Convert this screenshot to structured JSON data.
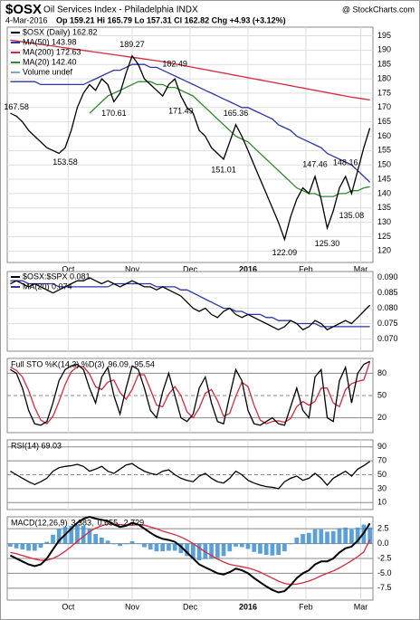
{
  "header": {
    "symbol": "$OSX",
    "name": "Oil Services Index - Philadelphia INDX",
    "date": "4-Mar-2016",
    "quote": "Op 159.21 Hi 165.79 Lo 157.31 Cl 162.82 Chg +4.93 (+3.12%)",
    "credit": "@ StockCharts.com"
  },
  "chart_data": [
    {
      "type": "line",
      "legend_layout": "rows",
      "legend": [
        {
          "text": "$OSX (Daily) 162.82",
          "color": "#000000"
        },
        {
          "text": "MA(50) 143.98",
          "color": "#2b35a8"
        },
        {
          "text": "MA(200) 172.63",
          "color": "#d42a3c"
        },
        {
          "text": "MA(20) 142.40",
          "color": "#2e8b2e"
        },
        {
          "text": "Volume undef",
          "color": "#7fa7d8"
        }
      ],
      "ylim": [
        116,
        198
      ],
      "yticks": [
        120,
        125,
        130,
        135,
        140,
        145,
        150,
        155,
        160,
        165,
        170,
        175,
        180,
        185,
        190,
        195
      ],
      "xticks": [
        {
          "value": 9.5,
          "label": "Oct"
        },
        {
          "value": 20,
          "label": "Nov"
        },
        {
          "value": 29.5,
          "label": "Dec"
        },
        {
          "value": 39,
          "label": "2016"
        },
        {
          "value": 48.5,
          "label": "Feb"
        },
        {
          "value": 57.5,
          "label": "Mar"
        }
      ],
      "series": [
        {
          "color": "#d42a3c",
          "kind": "line",
          "values": [
            193.5,
            193.2,
            192.9,
            192.6,
            192.3,
            192.0,
            191.7,
            191.4,
            191.1,
            190.8,
            190.5,
            190.2,
            189.9,
            189.6,
            189.3,
            189.0,
            188.7,
            188.4,
            188.1,
            187.8,
            187.5,
            187.2,
            186.9,
            186.6,
            186.3,
            186.0,
            185.6,
            185.2,
            184.8,
            184.4,
            184.0,
            183.6,
            183.2,
            182.8,
            182.4,
            182.0,
            181.6,
            181.2,
            180.8,
            180.4,
            180.0,
            179.6,
            179.2,
            178.8,
            178.4,
            178.0,
            177.6,
            177.2,
            176.8,
            176.4,
            176.0,
            175.6,
            175.2,
            174.8,
            174.4,
            174.0,
            173.6,
            173.3,
            173.0,
            172.63
          ]
        },
        {
          "color": "#2b35a8",
          "kind": "line",
          "values": [
            179,
            179,
            179,
            179,
            179,
            178,
            178,
            178,
            178,
            178,
            178,
            178,
            178,
            179,
            180,
            181,
            182,
            183,
            183,
            184,
            185,
            185,
            185,
            184,
            184,
            183,
            182,
            181,
            180,
            179,
            178,
            177,
            176,
            175,
            174,
            173,
            172,
            171,
            170,
            170,
            169,
            168,
            167,
            166,
            164,
            163,
            162,
            160,
            159,
            158,
            157,
            156,
            154,
            153,
            152,
            151,
            150,
            148,
            146,
            143.98
          ]
        },
        {
          "color": "#2e8b2e",
          "kind": "line",
          "values": [
            null,
            null,
            null,
            null,
            null,
            null,
            null,
            null,
            null,
            null,
            null,
            null,
            null,
            168,
            170,
            172,
            174,
            175,
            176,
            177,
            178,
            179,
            179,
            179,
            178,
            178,
            177,
            177,
            176,
            175,
            174,
            172,
            170,
            168,
            166,
            164,
            162,
            160,
            159,
            158,
            156,
            154,
            152,
            150,
            148,
            146,
            144,
            142,
            141,
            140,
            140,
            139,
            139,
            139,
            140,
            140,
            141,
            141,
            142,
            142.4
          ]
        },
        {
          "color": "#000000",
          "kind": "line",
          "values": [
            168,
            167,
            165,
            162,
            160,
            158,
            156,
            155,
            154,
            156,
            162,
            170,
            175,
            178,
            176,
            180,
            178,
            172,
            175,
            182,
            188,
            185,
            180,
            178,
            176,
            174,
            178,
            180,
            174,
            170,
            168,
            162,
            160,
            156,
            154,
            152,
            158,
            164,
            160,
            155,
            150,
            145,
            140,
            135,
            130,
            124,
            132,
            138,
            142,
            140,
            146,
            138,
            128,
            134,
            142,
            146,
            140,
            148,
            156,
            162.82
          ]
        }
      ],
      "annotations": [
        {
          "x": 1,
          "value": 167.58
        },
        {
          "x": 9,
          "value": 153.58
        },
        {
          "x": 17,
          "value": 170.61
        },
        {
          "x": 20,
          "value": 189.27
        },
        {
          "x": 27,
          "value": 182.49
        },
        {
          "x": 28,
          "value": 171.49
        },
        {
          "x": 37,
          "value": 165.36
        },
        {
          "x": 35,
          "value": 151.01
        },
        {
          "x": 45,
          "value": 122.09
        },
        {
          "x": 50,
          "value": 147.46
        },
        {
          "x": 52,
          "value": 125.3,
          "label": "125.30"
        },
        {
          "x": 55,
          "value": 148.16
        },
        {
          "x": 56,
          "value": 135.08
        }
      ]
    },
    {
      "type": "line",
      "legend_layout": "rows",
      "legend": [
        {
          "text": "$OSX:$SPX 0.081",
          "color": "#000000"
        },
        {
          "text": "MA(20) 0.074",
          "color": "#2b35a8"
        }
      ],
      "ylim": [
        0.066,
        0.092
      ],
      "yticks": [
        {
          "value": 0.07,
          "label": "0.070"
        },
        {
          "value": 0.075,
          "label": "0.075"
        },
        {
          "value": 0.08,
          "label": "0.080"
        },
        {
          "value": 0.085,
          "label": "0.085"
        },
        {
          "value": 0.09,
          "label": "0.090"
        }
      ],
      "series": [
        {
          "color": "#2b35a8",
          "kind": "line",
          "values": [
            0.089,
            0.089,
            0.089,
            0.088,
            0.088,
            0.088,
            0.088,
            0.088,
            0.087,
            0.087,
            0.087,
            0.087,
            0.087,
            0.087,
            0.087,
            0.087,
            0.087,
            0.088,
            0.088,
            0.088,
            0.088,
            0.088,
            0.088,
            0.088,
            0.087,
            0.087,
            0.087,
            0.087,
            0.086,
            0.086,
            0.085,
            0.084,
            0.083,
            0.082,
            0.081,
            0.08,
            0.08,
            0.079,
            0.079,
            0.078,
            0.078,
            0.078,
            0.077,
            0.077,
            0.076,
            0.076,
            0.076,
            0.075,
            0.075,
            0.075,
            0.075,
            0.074,
            0.074,
            0.074,
            0.074,
            0.074,
            0.074,
            0.074,
            0.074,
            0.074
          ]
        },
        {
          "color": "#000000",
          "kind": "line",
          "values": [
            0.088,
            0.089,
            0.088,
            0.087,
            0.088,
            0.087,
            0.086,
            0.085,
            0.086,
            0.087,
            0.088,
            0.089,
            0.089,
            0.09,
            0.089,
            0.088,
            0.089,
            0.088,
            0.087,
            0.088,
            0.089,
            0.088,
            0.087,
            0.087,
            0.086,
            0.087,
            0.086,
            0.085,
            0.084,
            0.082,
            0.08,
            0.079,
            0.08,
            0.078,
            0.077,
            0.079,
            0.08,
            0.078,
            0.077,
            0.078,
            0.077,
            0.076,
            0.075,
            0.074,
            0.073,
            0.074,
            0.076,
            0.075,
            0.073,
            0.074,
            0.076,
            0.075,
            0.073,
            0.074,
            0.075,
            0.076,
            0.075,
            0.077,
            0.079,
            0.081
          ]
        }
      ]
    },
    {
      "type": "line",
      "legend_layout": "inline",
      "legend": [
        {
          "text": "Full STO %K(14,3) %D(3)",
          "color": "#000000"
        },
        {
          "text": "96.09,",
          "color": "#000000"
        },
        {
          "text": "95.54",
          "color": "#d42a3c"
        }
      ],
      "ylim": [
        0,
        100
      ],
      "yticks": [
        20,
        50,
        80
      ],
      "series": [
        {
          "color": "#d42a3c",
          "kind": "line",
          "values": [
            88,
            84,
            75,
            57,
            34,
            17,
            12,
            22,
            42,
            65,
            82,
            89,
            89,
            79,
            62,
            58,
            68,
            71,
            54,
            45,
            58,
            78,
            78,
            58,
            37,
            35,
            52,
            62,
            50,
            28,
            20,
            33,
            53,
            58,
            43,
            22,
            26,
            49,
            68,
            62,
            37,
            17,
            12,
            15,
            16,
            14,
            19,
            35,
            42,
            37,
            42,
            60,
            60,
            40,
            35,
            58,
            66,
            69,
            71,
            95.54
          ]
        },
        {
          "color": "#000000",
          "kind": "line",
          "values": [
            85,
            80,
            60,
            30,
            12,
            10,
            15,
            40,
            70,
            85,
            90,
            92,
            85,
            60,
            40,
            75,
            88,
            50,
            25,
            60,
            90,
            85,
            60,
            30,
            20,
            55,
            80,
            50,
            20,
            15,
            25,
            60,
            75,
            40,
            15,
            12,
            50,
            85,
            70,
            30,
            12,
            10,
            15,
            20,
            12,
            10,
            35,
            60,
            30,
            20,
            75,
            85,
            20,
            15,
            70,
            88,
            40,
            80,
            92,
            96.09
          ]
        }
      ]
    },
    {
      "type": "line",
      "legend_layout": "inline",
      "legend": [
        {
          "text": "RSI(14) 69.03",
          "color": "#000000"
        }
      ],
      "ylim": [
        0,
        100
      ],
      "yticks": [
        10,
        30,
        50,
        70,
        90
      ],
      "series": [
        {
          "color": "#000000",
          "kind": "line",
          "values": [
            55,
            50,
            45,
            40,
            36,
            40,
            45,
            55,
            60,
            62,
            63,
            65,
            62,
            55,
            58,
            62,
            55,
            52,
            58,
            64,
            66,
            60,
            55,
            52,
            50,
            55,
            57,
            50,
            45,
            42,
            40,
            48,
            52,
            45,
            40,
            38,
            45,
            55,
            50,
            42,
            38,
            35,
            33,
            32,
            30,
            40,
            45,
            48,
            42,
            45,
            52,
            45,
            35,
            45,
            50,
            55,
            48,
            58,
            63,
            69.03
          ]
        }
      ]
    },
    {
      "type": "line",
      "legend_layout": "inline",
      "legend": [
        {
          "text": "MACD(12,26,9)",
          "color": "#000000"
        },
        {
          "text": "3.383,",
          "color": "#000000"
        },
        {
          "text": "0.655,",
          "color": "#d42a3c"
        },
        {
          "text": "2.729",
          "color": "#3b8fd0"
        }
      ],
      "ylim": [
        -9.5,
        4.5
      ],
      "yticks": [
        -7.5,
        {
          "value": -5,
          "label": "-5.0"
        },
        -2.5,
        {
          "value": 0,
          "label": "0.0"
        },
        2.5
      ],
      "xticks": [
        {
          "value": 9.5,
          "label": "Oct"
        },
        {
          "value": 20,
          "label": "Nov"
        },
        {
          "value": 29.5,
          "label": "Dec"
        },
        {
          "value": 39,
          "label": "2016"
        },
        {
          "value": 48.5,
          "label": "Feb"
        },
        {
          "value": 57.5,
          "label": "Mar"
        }
      ],
      "series": [
        {
          "color": "#3b8fd0",
          "kind": "histogram",
          "values": [
            -0.5,
            -0.8,
            -1.0,
            -1.2,
            -1.2,
            -0.7,
            0.3,
            1.5,
            2.5,
            2.8,
            3.0,
            3.1,
            3.0,
            2.5,
            1.6,
            1.0,
            0.5,
            -0.1,
            -0.4,
            -0.1,
            0.4,
            0.0,
            -0.6,
            -1.0,
            -1.3,
            -1.3,
            -1.2,
            -1.2,
            -1.6,
            -2.1,
            -2.5,
            -2.8,
            -2.6,
            -2.5,
            -2.4,
            -2.1,
            -1.3,
            -0.5,
            -0.6,
            -0.9,
            -1.4,
            -1.7,
            -1.9,
            -2.0,
            -1.9,
            -1.3,
            -0.1,
            1.0,
            1.6,
            1.8,
            2.4,
            2.4,
            2.0,
            2.1,
            2.6,
            2.7,
            2.4,
            2.7,
            3.2,
            2.729
          ]
        },
        {
          "color": "#d42a3c",
          "kind": "line",
          "values": [
            -1.5,
            -1.7,
            -2.0,
            -2.3,
            -2.6,
            -2.8,
            -2.8,
            -2.5,
            -2.0,
            -1.3,
            -0.5,
            0.4,
            1.2,
            2.0,
            2.6,
            3.0,
            3.3,
            3.3,
            3.2,
            3.1,
            3.1,
            3.2,
            3.1,
            2.8,
            2.5,
            2.1,
            1.8,
            1.5,
            1.1,
            0.6,
            0.0,
            -0.7,
            -1.4,
            -2.0,
            -2.6,
            -3.1,
            -3.5,
            -3.7,
            -3.9,
            -4.1,
            -4.4,
            -4.8,
            -5.3,
            -5.8,
            -6.3,
            -6.7,
            -6.9,
            -6.8,
            -6.6,
            -6.3,
            -5.9,
            -5.4,
            -5.0,
            -4.6,
            -4.1,
            -3.5,
            -2.9,
            -2.2,
            -1.4,
            0.655
          ]
        },
        {
          "color": "#000000",
          "kind": "line",
          "width": 2,
          "values": [
            -2,
            -2.5,
            -3,
            -3.5,
            -3.8,
            -3.5,
            -2.5,
            -1,
            0.5,
            1.5,
            2.5,
            3.5,
            4.2,
            4.5,
            4.2,
            4.0,
            3.8,
            3.2,
            2.8,
            3.0,
            3.5,
            3.2,
            2.5,
            1.8,
            1.2,
            0.8,
            0.6,
            0.3,
            -0.5,
            -1.5,
            -2.5,
            -3.5,
            -4.0,
            -4.5,
            -5.0,
            -5.2,
            -4.8,
            -4.2,
            -4.5,
            -5.0,
            -5.8,
            -6.5,
            -7.2,
            -7.8,
            -8.2,
            -8.0,
            -7.0,
            -5.8,
            -5.0,
            -4.5,
            -3.5,
            -3.0,
            -3.0,
            -2.5,
            -1.5,
            -0.8,
            -0.5,
            0.5,
            1.8,
            3.383
          ]
        }
      ]
    }
  ]
}
